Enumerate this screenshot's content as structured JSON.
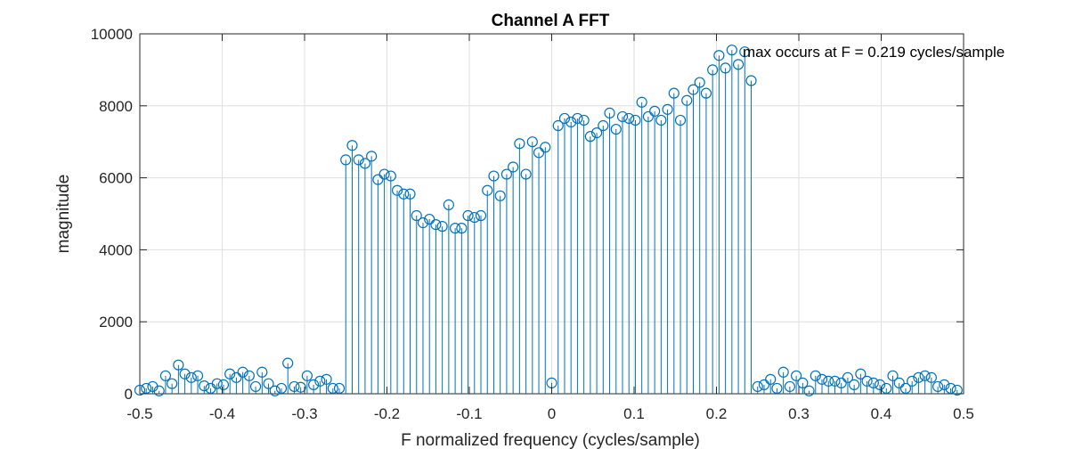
{
  "chart_data": {
    "type": "stem",
    "title": "Channel A FFT",
    "xlabel": "F normalized frequency (cycles/sample)",
    "ylabel": "magnitude",
    "xlim": [
      -0.5,
      0.5
    ],
    "ylim": [
      0,
      10000
    ],
    "xticks": [
      -0.5,
      -0.4,
      -0.3,
      -0.2,
      -0.1,
      0,
      0.1,
      0.2,
      0.3,
      0.4,
      0.5
    ],
    "xtick_labels": [
      "-0.5",
      "-0.4",
      "-0.3",
      "-0.2",
      "-0.1",
      "0",
      "0.1",
      "0.2",
      "0.3",
      "0.4",
      "0.5"
    ],
    "yticks": [
      0,
      2000,
      4000,
      6000,
      8000,
      10000
    ],
    "ytick_labels": [
      "0",
      "2000",
      "4000",
      "6000",
      "8000",
      "10000"
    ],
    "grid": true,
    "color": "#0072BD",
    "annotation": {
      "text": "max occurs at F = 0.219 cycles/sample",
      "x": 0.234,
      "y": 9500
    },
    "x_start": -0.5,
    "x_step": 0.0078125,
    "values": [
      100,
      150,
      200,
      80,
      500,
      280,
      800,
      550,
      450,
      500,
      220,
      150,
      280,
      250,
      550,
      450,
      600,
      500,
      200,
      600,
      280,
      80,
      150,
      850,
      200,
      180,
      500,
      250,
      350,
      400,
      150,
      150,
      6500,
      6900,
      6500,
      6400,
      6600,
      5950,
      6100,
      6050,
      5650,
      5550,
      5550,
      4950,
      4750,
      4850,
      4700,
      4650,
      5250,
      4600,
      4600,
      4950,
      4900,
      4950,
      5650,
      6050,
      5500,
      6100,
      6300,
      6950,
      6100,
      7000,
      6700,
      6850,
      300,
      7450,
      7650,
      7550,
      7650,
      7600,
      7150,
      7250,
      7450,
      7800,
      7350,
      7700,
      7650,
      7600,
      8100,
      7700,
      7850,
      7600,
      7900,
      8350,
      7600,
      8150,
      8450,
      8650,
      8350,
      9000,
      9400,
      9050,
      9550,
      9150,
      9500,
      8700,
      200,
      250,
      400,
      150,
      600,
      200,
      500,
      300,
      80,
      500,
      400,
      350,
      350,
      300,
      450,
      250,
      550,
      350,
      300,
      250,
      150,
      500,
      300,
      150,
      350,
      450,
      500,
      450,
      200,
      250,
      150,
      100
    ]
  }
}
